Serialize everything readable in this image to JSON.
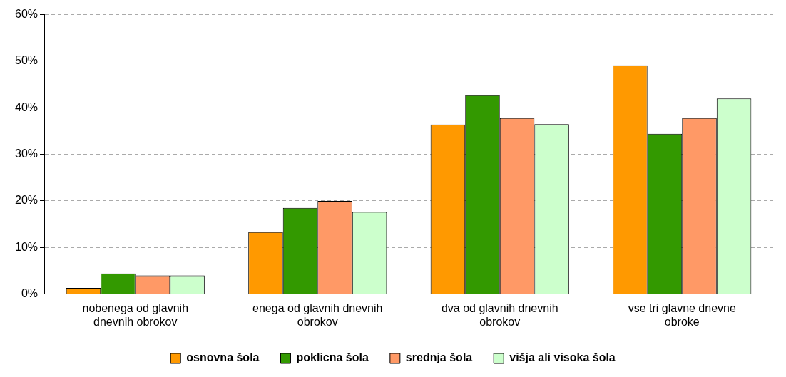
{
  "chart_data": {
    "type": "bar",
    "categories": [
      "nobenega od glavnih dnevnih obrokov",
      "enega od glavnih dnevnih obrokov",
      "dva od glavnih dnevnih obrokov",
      "vse tri glavne dnevne obroke"
    ],
    "series": [
      {
        "name": "osnovna šola",
        "color": "#ff9900",
        "values": [
          1.3,
          13.3,
          36.4,
          49.1
        ]
      },
      {
        "name": "poklicna šola",
        "color": "#339900",
        "values": [
          4.4,
          18.5,
          42.7,
          34.4
        ]
      },
      {
        "name": "srednja šola",
        "color": "#ff9966",
        "values": [
          4.0,
          20.0,
          37.8,
          37.8
        ]
      },
      {
        "name": "višja ali visoka šola",
        "color": "#ccffcc",
        "values": [
          4.0,
          17.6,
          36.5,
          42.0
        ]
      }
    ],
    "ylim": [
      0,
      60
    ],
    "yticks": [
      {
        "value": 0,
        "label": "0%"
      },
      {
        "value": 10,
        "label": "10%"
      },
      {
        "value": 20,
        "label": "20%"
      },
      {
        "value": 30,
        "label": "30%"
      },
      {
        "value": 40,
        "label": "40%"
      },
      {
        "value": 50,
        "label": "50%"
      },
      {
        "value": 60,
        "label": "60%"
      }
    ],
    "grid": "y",
    "legend": "bottom"
  }
}
